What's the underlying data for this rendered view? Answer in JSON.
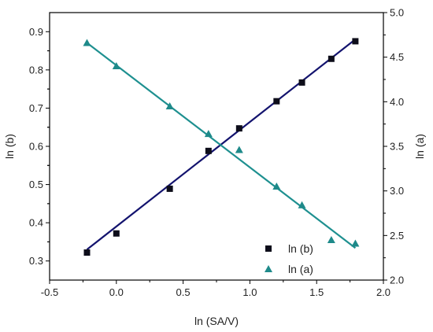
{
  "chart_data": {
    "type": "scatter",
    "xlabel": "ln (SA/V)",
    "ylabel_left": "ln (b)",
    "ylabel_right": "ln (a)",
    "xlim": [
      -0.5,
      2.0
    ],
    "ylim_left": [
      0.25,
      0.95
    ],
    "ylim_right": [
      2.0,
      5.0
    ],
    "xticks": [
      "-0.5",
      "0.0",
      "0.5",
      "1.0",
      "1.5",
      "2.0"
    ],
    "yticks_left": [
      "0.3",
      "0.4",
      "0.5",
      "0.6",
      "0.7",
      "0.8",
      "0.9"
    ],
    "yticks_right": [
      "2.0",
      "2.5",
      "3.0",
      "3.5",
      "4.0",
      "4.5",
      "5.0"
    ],
    "grid": false,
    "legend_position": "bottom-right",
    "series": [
      {
        "name": "ln (b)",
        "axis": "left",
        "marker": "square",
        "color": "#0d0d1a",
        "fit_color": "#13136e",
        "points": [
          [
            -0.22,
            0.322
          ],
          [
            0.0,
            0.372
          ],
          [
            0.4,
            0.489
          ],
          [
            0.69,
            0.588
          ],
          [
            0.92,
            0.647
          ],
          [
            1.2,
            0.718
          ],
          [
            1.39,
            0.767
          ],
          [
            1.61,
            0.829
          ],
          [
            1.79,
            0.875
          ]
        ],
        "fit": [
          [
            -0.22,
            0.33
          ],
          [
            1.79,
            0.88
          ]
        ]
      },
      {
        "name": "ln (a)",
        "axis": "right",
        "marker": "triangle",
        "color": "#1e8a8a",
        "fit_color": "#1e9090",
        "points": [
          [
            -0.22,
            4.66
          ],
          [
            0.0,
            4.4
          ],
          [
            0.4,
            3.95
          ],
          [
            0.69,
            3.64
          ],
          [
            0.92,
            3.46
          ],
          [
            1.2,
            3.05
          ],
          [
            1.39,
            2.84
          ],
          [
            1.61,
            2.45
          ],
          [
            1.79,
            2.41
          ]
        ],
        "fit": [
          [
            -0.22,
            4.66
          ],
          [
            1.79,
            2.36
          ]
        ]
      }
    ]
  }
}
